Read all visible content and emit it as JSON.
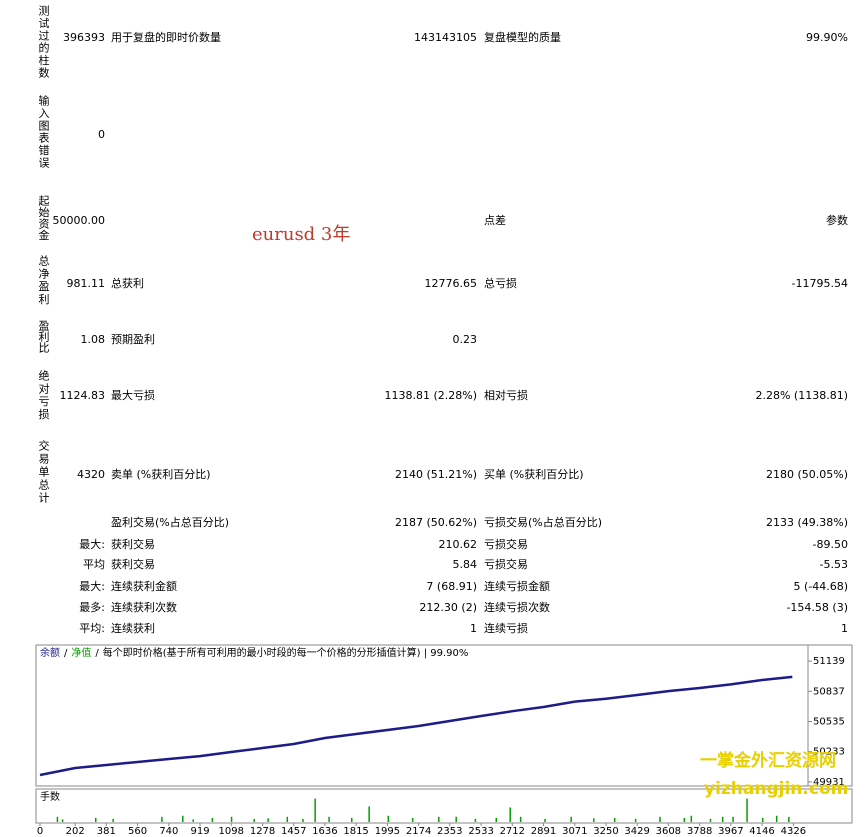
{
  "report": {
    "rows": [
      {
        "label": "测试过的柱数",
        "value": "396393",
        "mid": {
          "label": "用于复盘的即时价数量",
          "value": "143143105"
        },
        "right": {
          "label": "复盘模型的质量",
          "value": "99.90%"
        }
      },
      {
        "label": "输入图表错误",
        "value": "0"
      },
      {
        "label": "起始资金",
        "value": "50000.00",
        "right": {
          "label": "点差",
          "value": "参数"
        }
      },
      {
        "label": "总净盈利",
        "value": "981.11",
        "mid": {
          "label": "总获利",
          "value": "12776.65"
        },
        "right": {
          "label": "总亏损",
          "value": "-11795.54"
        }
      },
      {
        "label": "盈利比",
        "value": "1.08",
        "mid": {
          "label": "预期盈利",
          "value": "0.23"
        }
      },
      {
        "label": "绝对亏损",
        "value": "1124.83",
        "mid": {
          "label": "最大亏损",
          "value": "1138.81 (2.28%)"
        },
        "right": {
          "label": "相对亏损",
          "value": "2.28% (1138.81)"
        }
      },
      {
        "label": "交易单总计",
        "value": "4320",
        "mid": {
          "label": "卖单 (%获利百分比)",
          "value": "2140 (51.21%)"
        },
        "right": {
          "label": "买单 (%获利百分比)",
          "value": "2180 (50.05%)"
        }
      },
      {
        "mid": {
          "label": "盈利交易(%占总百分比)",
          "value": "2187 (50.62%)"
        },
        "right": {
          "label": "亏损交易(%占总百分比)",
          "value": "2133 (49.38%)"
        }
      },
      {
        "prefix": "最大:",
        "mid": {
          "label": "获利交易",
          "value": "210.62"
        },
        "right": {
          "label": "亏损交易",
          "value": "-89.50"
        }
      },
      {
        "prefix": "平均",
        "mid": {
          "label": "获利交易",
          "value": "5.84"
        },
        "right": {
          "label": "亏损交易",
          "value": "-5.53"
        }
      },
      {
        "prefix": "最大:",
        "mid": {
          "label": "连续获利金额",
          "value": "7 (68.91)"
        },
        "right": {
          "label": "连续亏损金额",
          "value": "5 (-44.68)"
        }
      },
      {
        "prefix": "最多:",
        "mid": {
          "label": "连续获利次数",
          "value": "212.30 (2)"
        },
        "right": {
          "label": "连续亏损次数",
          "value": "-154.58 (3)"
        }
      },
      {
        "prefix": "平均:",
        "mid": {
          "label": "连续获利",
          "value": "1"
        },
        "right": {
          "label": "连续亏损",
          "value": "1"
        }
      }
    ]
  },
  "annotation": "eurusd 3年",
  "chart_data": {
    "type": "line",
    "legend": [
      "余额",
      "净值"
    ],
    "separator": "/",
    "subtitle": "每个即时价格(基于所有可利用的最小时段的每一个价格的分形插值计算) | 99.90%",
    "x": [
      0,
      202,
      381,
      560,
      740,
      919,
      1098,
      1278,
      1457,
      1636,
      1815,
      1995,
      2174,
      2353,
      2533,
      2712,
      2891,
      3071,
      3250,
      3429,
      3608,
      3788,
      3967,
      4146,
      4320
    ],
    "series": [
      {
        "name": "余额",
        "color": "#1c1c8a",
        "values": [
          50000,
          50070,
          50100,
          50130,
          50160,
          50189,
          50230,
          50270,
          50310,
          50370,
          50410,
          50450,
          50490,
          50540,
          50590,
          50638,
          50680,
          50734,
          50762,
          50800,
          50839,
          50870,
          50906,
          50950,
          50981
        ]
      }
    ],
    "xlim": [
      0,
      4410
    ],
    "ylim": [
      49900,
      51250
    ],
    "xticks": [
      0,
      202,
      381,
      560,
      740,
      919,
      1098,
      1278,
      1457,
      1636,
      1815,
      1995,
      2174,
      2353,
      2533,
      2712,
      2891,
      3071,
      3250,
      3429,
      3608,
      3788,
      3967,
      4146,
      4326
    ],
    "yticks": [
      49931,
      50233,
      50535,
      50837,
      51139
    ],
    "volume": {
      "label": "手数",
      "color": "#00a000",
      "ylim": [
        0,
        0.5
      ],
      "x": [
        100,
        130,
        320,
        420,
        700,
        820,
        880,
        990,
        1100,
        1230,
        1310,
        1420,
        1510,
        1580,
        1660,
        1790,
        1890,
        2000,
        2140,
        2290,
        2390,
        2500,
        2620,
        2700,
        2760,
        2900,
        3050,
        3180,
        3300,
        3420,
        3560,
        3700,
        3740,
        3850,
        3920,
        3980,
        4060,
        4150,
        4230,
        4300
      ],
      "values": [
        0.1,
        0.05,
        0.08,
        0.06,
        0.1,
        0.12,
        0.05,
        0.08,
        0.1,
        0.06,
        0.07,
        0.1,
        0.06,
        0.45,
        0.1,
        0.08,
        0.3,
        0.12,
        0.08,
        0.1,
        0.1,
        0.06,
        0.08,
        0.28,
        0.1,
        0.06,
        0.1,
        0.07,
        0.08,
        0.06,
        0.1,
        0.08,
        0.12,
        0.06,
        0.1,
        0.1,
        0.45,
        0.08,
        0.12,
        0.1
      ]
    }
  },
  "watermark": [
    "一掌金外汇资源网",
    "yizhangjin.com"
  ]
}
